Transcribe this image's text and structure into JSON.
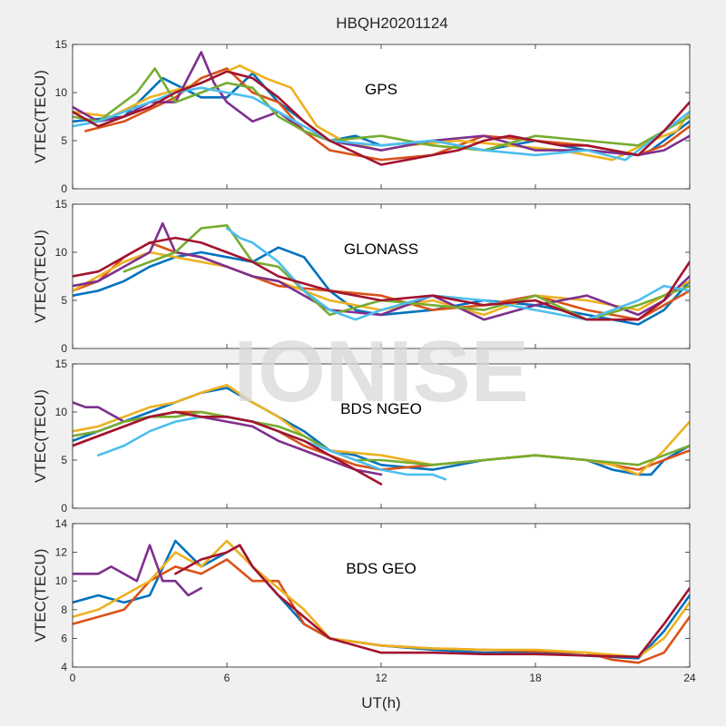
{
  "figure": {
    "title": "HBQH20201124",
    "xlabel": "UT(h)",
    "watermark": "IONISE",
    "background": "#f0f0f0",
    "axes_background": "#ffffff"
  },
  "chart_data": [
    {
      "type": "line",
      "title": "",
      "annotation": "GPS",
      "xlabel": "",
      "ylabel": "VTEC(TECU)",
      "xlim": [
        0,
        24
      ],
      "ylim": [
        0,
        15
      ],
      "xticks": [
        "0",
        "6",
        "12",
        "18",
        "24"
      ],
      "yticks": [
        "0",
        "5",
        "10",
        "15"
      ],
      "grid": false,
      "series": [
        {
          "color": "#0072BD",
          "x": [
            0,
            2,
            3.5,
            5,
            6,
            7,
            8,
            9,
            10,
            11,
            12,
            14,
            16,
            18,
            20,
            22,
            22.5,
            24
          ],
          "y": [
            7,
            7.5,
            11.5,
            9.5,
            9.5,
            12,
            9,
            7,
            5,
            5.5,
            4.5,
            5,
            4,
            5,
            4,
            3.5,
            4,
            7
          ]
        },
        {
          "color": "#D95319",
          "x": [
            0.5,
            2,
            4,
            5,
            6,
            7,
            8,
            9,
            10,
            11,
            12,
            14,
            16,
            18,
            20,
            22,
            23,
            24
          ],
          "y": [
            6,
            7,
            9.5,
            11.5,
            12.5,
            10,
            9,
            6,
            4,
            3.5,
            3,
            3.5,
            5.5,
            5,
            4.5,
            3.5,
            4.5,
            6.5
          ]
        },
        {
          "color": "#EDB120",
          "x": [
            0,
            1.5,
            3,
            5,
            6.5,
            7.5,
            8.5,
            9.5,
            10.5,
            12,
            13,
            15,
            17,
            19,
            21,
            22.5,
            23.5,
            24
          ],
          "y": [
            8,
            7.5,
            9.5,
            11,
            12.8,
            11.5,
            10.5,
            6.5,
            5,
            4,
            4.5,
            5,
            4.5,
            4,
            3,
            5,
            6,
            8
          ]
        },
        {
          "color": "#7E2F8E",
          "x": [
            0,
            1,
            2,
            3,
            4,
            5,
            5.5,
            6,
            7,
            8,
            9,
            10,
            12,
            14,
            16,
            18,
            20,
            22,
            23,
            24
          ],
          "y": [
            8.5,
            7,
            7.5,
            9,
            9,
            14.2,
            11,
            9,
            7,
            8,
            6,
            5,
            4,
            5,
            5.5,
            4,
            4,
            3.5,
            4,
            5.5
          ]
        },
        {
          "color": "#77AC30",
          "x": [
            0,
            1,
            2.5,
            3.2,
            4,
            5,
            6,
            7,
            8,
            9,
            10,
            12,
            14,
            16,
            18,
            20,
            22,
            23,
            24
          ],
          "y": [
            7.5,
            7,
            10,
            12.5,
            9,
            10,
            11,
            10.5,
            7.5,
            6,
            5,
            5.5,
            4.5,
            4,
            5.5,
            5,
            4.5,
            6,
            7.5
          ]
        },
        {
          "color": "#4DBEEE",
          "x": [
            0,
            1,
            2,
            3,
            4,
            5,
            6,
            7,
            8,
            9,
            10,
            12,
            14,
            16,
            18,
            20,
            21.5,
            22.5,
            24
          ],
          "y": [
            6.5,
            7,
            8,
            9,
            10,
            10.5,
            10,
            9.5,
            8,
            6.5,
            5,
            4.5,
            5,
            4,
            3.5,
            4,
            3,
            5,
            8
          ]
        },
        {
          "color": "#A2142F",
          "x": [
            0,
            1,
            2,
            3,
            4,
            5,
            6,
            7,
            8,
            9,
            10,
            12,
            13,
            14,
            15,
            16,
            17,
            18,
            19,
            20,
            21,
            22,
            23,
            24
          ],
          "y": [
            8,
            6.5,
            7.5,
            8.5,
            10,
            11,
            12.2,
            11.5,
            9.5,
            7,
            5,
            2.5,
            3,
            3.5,
            4,
            5,
            5.5,
            5,
            4.5,
            4.5,
            4,
            3.5,
            6,
            9
          ]
        }
      ]
    },
    {
      "type": "line",
      "title": "",
      "annotation": "GLONASS",
      "xlabel": "",
      "ylabel": "VTEC(TECU)",
      "xlim": [
        0,
        24
      ],
      "ylim": [
        0,
        15
      ],
      "xticks": [
        "0",
        "6",
        "12",
        "18",
        "24"
      ],
      "yticks": [
        "0",
        "5",
        "10",
        "15"
      ],
      "grid": false,
      "series": [
        {
          "color": "#0072BD",
          "x": [
            0,
            1,
            2,
            3,
            4,
            5,
            6,
            7,
            8,
            9,
            10,
            11,
            12,
            14,
            16,
            18,
            20,
            22,
            23,
            24
          ],
          "y": [
            5.5,
            6,
            7,
            8.5,
            9.5,
            10,
            9.5,
            9,
            10.5,
            9.5,
            6,
            4,
            3.5,
            4,
            5,
            4.5,
            3.5,
            2.5,
            4,
            7
          ]
        },
        {
          "color": "#D95319",
          "x": [
            0,
            1,
            2,
            3,
            4,
            5,
            6,
            7,
            8,
            10,
            12,
            14,
            16,
            18,
            20,
            22,
            23,
            24
          ],
          "y": [
            6,
            7,
            9.5,
            11,
            10,
            9.5,
            8.5,
            7.5,
            6.5,
            6,
            5.5,
            4,
            4.5,
            5.5,
            4,
            3,
            4.5,
            6
          ]
        },
        {
          "color": "#EDB120",
          "x": [
            0,
            1,
            2,
            3,
            4,
            5,
            6,
            7,
            8,
            10,
            12,
            14,
            16,
            18,
            20,
            22,
            23,
            24
          ],
          "y": [
            6,
            7.5,
            9,
            10,
            9.5,
            9,
            8.5,
            7.5,
            7,
            5,
            4,
            5,
            3.5,
            5.5,
            5,
            4,
            5.5,
            7
          ]
        },
        {
          "color": "#7E2F8E",
          "x": [
            0,
            1,
            2,
            3,
            3.5,
            4,
            5,
            6,
            7,
            8,
            10,
            12,
            14,
            16,
            18,
            20,
            22,
            23,
            24
          ],
          "y": [
            6.5,
            7,
            8.5,
            10,
            13,
            10,
            9.5,
            8.5,
            7.5,
            7,
            4,
            3.5,
            5.5,
            3,
            4.5,
            5.5,
            3.5,
            5,
            7.5
          ]
        },
        {
          "color": "#77AC30",
          "x": [
            2,
            3,
            4,
            5,
            6,
            7,
            8,
            9,
            10,
            12,
            14,
            16,
            18,
            20,
            22,
            24
          ],
          "y": [
            8,
            9,
            10,
            12.5,
            12.8,
            9,
            8.5,
            6,
            3.5,
            5,
            4.5,
            4,
            5.5,
            3,
            4.5,
            6.5
          ]
        },
        {
          "color": "#4DBEEE",
          "x": [
            6,
            6.5,
            7,
            8,
            9,
            10,
            11,
            12,
            14,
            16,
            18,
            20,
            22,
            23,
            24
          ],
          "y": [
            12.5,
            11.5,
            11,
            9,
            6,
            4,
            3,
            4,
            5.5,
            5,
            4,
            3,
            5,
            6.5,
            6
          ]
        },
        {
          "color": "#A2142F",
          "x": [
            0,
            1,
            2,
            3,
            4,
            5,
            6,
            7,
            8,
            10,
            12,
            14,
            16,
            18,
            20,
            22,
            23,
            24
          ],
          "y": [
            7.5,
            8,
            9.5,
            11,
            11.5,
            11,
            10,
            9,
            7.5,
            6,
            5,
            5.5,
            4.5,
            5,
            3,
            3,
            5,
            9
          ]
        }
      ]
    },
    {
      "type": "line",
      "title": "",
      "annotation": "BDS NGEO",
      "xlabel": "",
      "ylabel": "VTEC(TECU)",
      "xlim": [
        0,
        24
      ],
      "ylim": [
        0,
        15
      ],
      "xticks": [
        "0",
        "6",
        "12",
        "18",
        "24"
      ],
      "yticks": [
        "0",
        "5",
        "10",
        "15"
      ],
      "grid": false,
      "series": [
        {
          "color": "#0072BD",
          "x": [
            0,
            1,
            2,
            3,
            4,
            5,
            6,
            7,
            8,
            9,
            10,
            11,
            12,
            14,
            16,
            18,
            20,
            21,
            22,
            22.5,
            23,
            24
          ],
          "y": [
            7,
            8,
            9,
            10,
            11,
            12,
            12.5,
            11,
            9.5,
            8,
            6,
            5.5,
            4.5,
            4,
            5,
            5.5,
            5,
            4,
            3.5,
            3.5,
            5,
            6.5
          ]
        },
        {
          "color": "#D95319",
          "x": [
            0,
            1,
            2,
            3,
            4,
            5,
            6,
            7,
            8,
            9,
            10,
            11,
            12,
            14,
            16,
            18,
            20,
            22,
            24
          ],
          "y": [
            6.5,
            7.5,
            8.5,
            9.5,
            10,
            10,
            9.5,
            9,
            8,
            6.5,
            5.5,
            4.5,
            4,
            4.5,
            5,
            5.5,
            5,
            4,
            6
          ]
        },
        {
          "color": "#EDB120",
          "x": [
            0,
            1,
            2,
            3,
            4,
            5,
            6,
            7,
            8,
            9,
            10,
            12,
            14,
            16,
            18,
            20,
            21,
            22,
            23,
            24
          ],
          "y": [
            8,
            8.5,
            9.5,
            10.5,
            11,
            12,
            12.8,
            11,
            9.5,
            7.5,
            6,
            5.5,
            4.5,
            5,
            5.5,
            5,
            4.5,
            3.5,
            6,
            9
          ]
        },
        {
          "color": "#7E2F8E",
          "x": [
            0,
            0.5,
            1,
            2,
            3,
            4,
            5,
            6,
            7,
            8,
            9,
            10,
            11,
            12
          ],
          "y": [
            11,
            10.5,
            10.5,
            9,
            9.5,
            10,
            9.5,
            9,
            8.5,
            7,
            6,
            5,
            4,
            3.5
          ]
        },
        {
          "color": "#77AC30",
          "x": [
            0,
            1,
            2,
            3,
            4,
            5,
            6,
            7,
            8,
            9,
            10,
            11,
            12,
            14,
            16,
            18,
            20,
            22,
            24
          ],
          "y": [
            7.5,
            8,
            9,
            9.5,
            9.5,
            10,
            9.5,
            9,
            8.5,
            7.5,
            6,
            5,
            5,
            4.5,
            5,
            5.5,
            5,
            4.5,
            6.5
          ]
        },
        {
          "color": "#4DBEEE",
          "x": [
            1,
            2,
            3,
            4,
            5,
            6,
            7,
            8,
            9,
            10,
            11,
            12,
            13,
            14,
            14.5
          ],
          "y": [
            5.5,
            6.5,
            8,
            9,
            9.5,
            9.5,
            9,
            8,
            7,
            6,
            5,
            4,
            3.5,
            3.5,
            3
          ]
        },
        {
          "color": "#A2142F",
          "x": [
            0,
            1,
            2,
            3,
            4,
            5,
            6,
            7,
            8,
            9,
            10,
            11,
            12
          ],
          "y": [
            6.5,
            7.5,
            8.5,
            9.5,
            10,
            9.5,
            9.5,
            9,
            8,
            7,
            5.5,
            4,
            2.5
          ]
        }
      ]
    },
    {
      "type": "line",
      "title": "",
      "annotation": "BDS GEO",
      "xlabel": "",
      "ylabel": "VTEC(TECU)",
      "xlim": [
        0,
        24
      ],
      "ylim": [
        4,
        14
      ],
      "xticks": [
        "0",
        "6",
        "12",
        "18",
        "24"
      ],
      "yticks": [
        "4",
        "6",
        "8",
        "10",
        "12",
        "14"
      ],
      "grid": false,
      "series": [
        {
          "color": "#0072BD",
          "x": [
            0,
            1,
            2,
            3,
            4,
            5,
            6,
            6.5,
            7,
            8,
            9,
            10,
            12,
            14,
            16,
            18,
            20,
            21,
            22,
            23,
            24
          ],
          "y": [
            8.5,
            9,
            8.5,
            9,
            12.8,
            11,
            12,
            12.5,
            11,
            9,
            7,
            6,
            5.5,
            5.2,
            5,
            5,
            4.8,
            4.7,
            4.6,
            6.5,
            9
          ]
        },
        {
          "color": "#D95319",
          "x": [
            0,
            1,
            2,
            3,
            4,
            5,
            6,
            7,
            8,
            9,
            10,
            12,
            14,
            16,
            18,
            20,
            21,
            22,
            23,
            24
          ],
          "y": [
            7,
            7.5,
            8,
            10,
            11,
            10.5,
            11.5,
            10,
            10,
            7,
            6,
            5.5,
            5.3,
            5.2,
            5.1,
            5,
            4.5,
            4.3,
            5,
            7.5
          ]
        },
        {
          "color": "#EDB120",
          "x": [
            0,
            1,
            2,
            3,
            4,
            5,
            6,
            7,
            8,
            9,
            10,
            12,
            14,
            16,
            18,
            20,
            22,
            23,
            24
          ],
          "y": [
            7.5,
            8,
            9,
            10,
            12,
            11,
            12.8,
            11,
            9.5,
            8,
            6,
            5.5,
            5.3,
            5.2,
            5.2,
            5,
            4.7,
            6,
            8.5
          ]
        },
        {
          "color": "#7E2F8E",
          "x": [
            0,
            1,
            1.5,
            2.5,
            3,
            3.5,
            4,
            4.5,
            5
          ],
          "y": [
            10.5,
            10.5,
            11,
            10,
            12.5,
            10,
            10,
            9,
            9.5
          ]
        },
        {
          "color": "#A2142F",
          "x": [
            4,
            4.5,
            5,
            6,
            6.5,
            7,
            7.5,
            8,
            9,
            10,
            12,
            14,
            16,
            18,
            20,
            22,
            23,
            24
          ],
          "y": [
            10.5,
            11,
            11.5,
            12,
            12.5,
            11,
            10,
            9,
            7.5,
            6,
            5,
            5,
            4.9,
            4.9,
            4.8,
            4.7,
            7,
            9.5
          ]
        }
      ]
    }
  ]
}
